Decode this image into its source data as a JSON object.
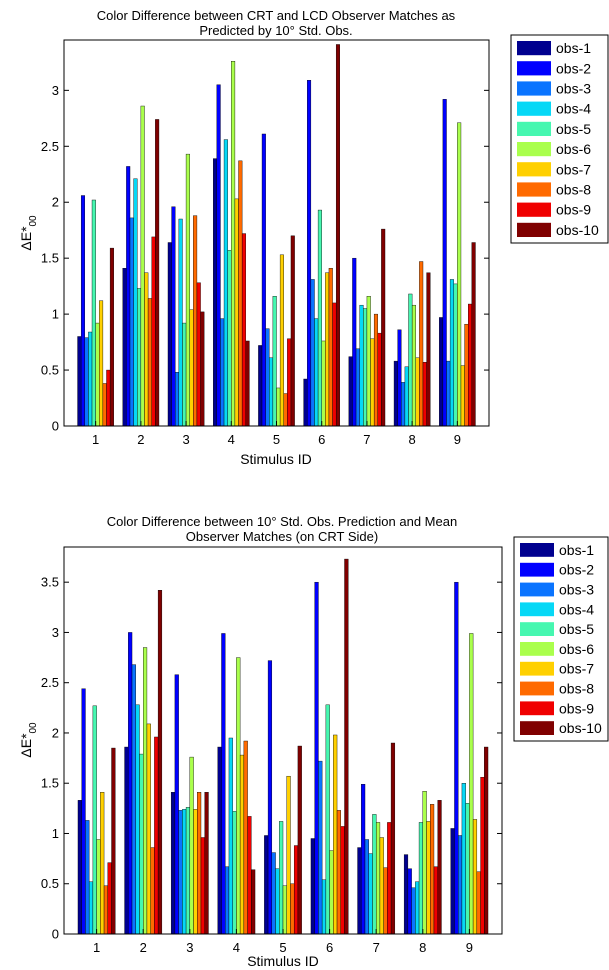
{
  "colors": [
    "#00008f",
    "#0000ff",
    "#0a74ff",
    "#06d8f6",
    "#46f7b0",
    "#aaff4c",
    "#ffd000",
    "#ff6a00",
    "#f00000",
    "#800000"
  ],
  "chart_data": [
    {
      "type": "bar",
      "title_line1": "Color Difference between CRT and LCD Observer Matches as",
      "title_line2": "Predicted by 10° Std. Obs.",
      "xlabel": "Stimulus ID",
      "ylabel_main": "ΔE*",
      "ylabel_sub": "00",
      "categories": [
        "1",
        "2",
        "3",
        "4",
        "5",
        "6",
        "7",
        "8",
        "9"
      ],
      "ylim": [
        0,
        3.45
      ],
      "yticks": [
        "0",
        "0.5",
        "1",
        "1.5",
        "2",
        "2.5",
        "3"
      ],
      "legend_position": "top-right",
      "series": [
        {
          "name": "obs-1",
          "values": [
            0.8,
            1.41,
            1.64,
            2.39,
            0.72,
            0.42,
            0.62,
            0.58,
            0.97
          ]
        },
        {
          "name": "obs-2",
          "values": [
            2.06,
            2.32,
            1.96,
            3.05,
            2.61,
            3.09,
            1.5,
            0.86,
            2.92
          ]
        },
        {
          "name": "obs-3",
          "values": [
            0.79,
            1.86,
            0.48,
            0.96,
            0.87,
            1.31,
            0.69,
            0.39,
            0.58
          ]
        },
        {
          "name": "obs-4",
          "values": [
            0.84,
            2.21,
            1.85,
            2.56,
            0.61,
            0.96,
            1.08,
            0.53,
            1.31
          ]
        },
        {
          "name": "obs-5",
          "values": [
            2.02,
            1.23,
            0.92,
            1.57,
            1.16,
            1.93,
            1.05,
            1.18,
            1.27
          ]
        },
        {
          "name": "obs-6",
          "values": [
            0.92,
            2.86,
            2.43,
            3.26,
            0.34,
            0.76,
            1.16,
            1.08,
            2.71
          ]
        },
        {
          "name": "obs-7",
          "values": [
            1.12,
            1.37,
            1.04,
            2.03,
            1.53,
            1.37,
            0.78,
            0.61,
            0.54
          ]
        },
        {
          "name": "obs-8",
          "values": [
            0.38,
            1.14,
            1.88,
            2.37,
            0.29,
            1.41,
            1.0,
            1.47,
            0.91
          ]
        },
        {
          "name": "obs-9",
          "values": [
            0.5,
            1.69,
            1.28,
            1.72,
            0.78,
            1.1,
            0.83,
            0.57,
            1.09
          ]
        },
        {
          "name": "obs-10",
          "values": [
            1.59,
            2.74,
            1.02,
            0.76,
            1.7,
            3.41,
            1.76,
            1.37,
            1.64
          ]
        }
      ]
    },
    {
      "type": "bar",
      "title_line1": "Color Difference between 10° Std. Obs. Prediction and Mean",
      "title_line2": "Observer Matches (on CRT Side)",
      "xlabel": "Stimulus ID",
      "ylabel_main": "ΔE*",
      "ylabel_sub": "00",
      "categories": [
        "1",
        "2",
        "3",
        "4",
        "5",
        "6",
        "7",
        "8",
        "9"
      ],
      "ylim": [
        0,
        3.85
      ],
      "yticks": [
        "0",
        "0.5",
        "1",
        "1.5",
        "2",
        "2.5",
        "3",
        "3.5"
      ],
      "legend_position": "top-right",
      "series": [
        {
          "name": "obs-1",
          "values": [
            1.33,
            1.86,
            1.41,
            1.86,
            0.98,
            0.95,
            0.86,
            0.79,
            1.05
          ]
        },
        {
          "name": "obs-2",
          "values": [
            2.44,
            3.0,
            2.58,
            2.99,
            2.72,
            3.5,
            1.49,
            0.65,
            3.5
          ]
        },
        {
          "name": "obs-3",
          "values": [
            1.13,
            2.68,
            1.23,
            0.67,
            0.81,
            1.72,
            0.94,
            0.46,
            0.98
          ]
        },
        {
          "name": "obs-4",
          "values": [
            0.52,
            2.28,
            1.24,
            1.95,
            0.65,
            0.54,
            0.8,
            0.52,
            1.5
          ]
        },
        {
          "name": "obs-5",
          "values": [
            2.27,
            1.79,
            1.26,
            1.22,
            1.12,
            2.28,
            1.19,
            1.11,
            1.3
          ]
        },
        {
          "name": "obs-6",
          "values": [
            0.94,
            2.85,
            1.76,
            2.75,
            0.48,
            0.83,
            1.11,
            1.42,
            2.99
          ]
        },
        {
          "name": "obs-7",
          "values": [
            1.41,
            2.09,
            1.24,
            1.78,
            1.57,
            1.98,
            0.96,
            1.12,
            1.14
          ]
        },
        {
          "name": "obs-8",
          "values": [
            0.48,
            0.86,
            1.41,
            1.92,
            0.5,
            1.23,
            0.66,
            1.29,
            0.62
          ]
        },
        {
          "name": "obs-9",
          "values": [
            0.71,
            1.96,
            0.96,
            1.17,
            0.88,
            1.07,
            1.11,
            0.67,
            1.56
          ]
        },
        {
          "name": "obs-10",
          "values": [
            1.85,
            3.42,
            1.41,
            0.64,
            1.87,
            3.73,
            1.9,
            1.33,
            1.86
          ]
        }
      ]
    }
  ]
}
